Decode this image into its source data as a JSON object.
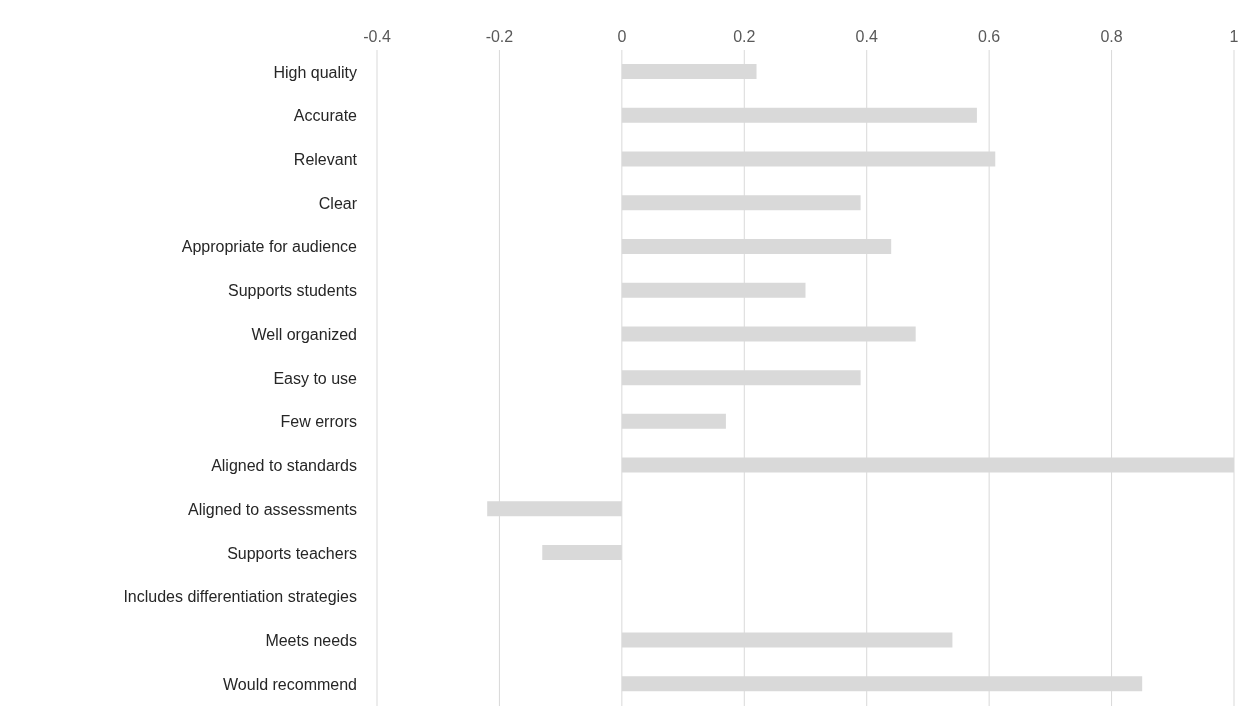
{
  "chart_data": {
    "type": "bar",
    "orientation": "horizontal",
    "categories": [
      "High quality",
      "Accurate",
      "Relevant",
      "Clear",
      "Appropriate for audience",
      "Supports students",
      "Well organized",
      "Easy to use",
      "Few errors",
      "Aligned to standards",
      "Aligned to assessments",
      "Supports teachers",
      "Includes differentiation strategies",
      "Meets needs",
      "Would recommend"
    ],
    "values": [
      0.22,
      0.58,
      0.61,
      0.39,
      0.44,
      0.3,
      0.48,
      0.39,
      0.17,
      1.0,
      -0.22,
      -0.13,
      0,
      0.54,
      0.85
    ],
    "color": "#d9d9d9",
    "xlim": [
      -0.4,
      1
    ],
    "xticks": [
      -0.4,
      -0.2,
      0,
      0.2,
      0.4,
      0.6,
      0.8,
      1
    ],
    "grid": "x"
  }
}
